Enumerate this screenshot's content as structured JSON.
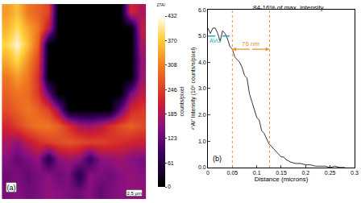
{
  "chart_data": [
    {
      "type": "heatmap",
      "cells": [
        [
          330,
          360,
          300,
          280,
          250,
          0,
          0,
          0,
          0,
          0,
          0,
          0,
          220,
          180
        ],
        [
          350,
          390,
          340,
          300,
          200,
          0,
          0,
          0,
          0,
          0,
          0,
          0,
          0,
          200
        ],
        [
          380,
          420,
          360,
          280,
          0,
          0,
          0,
          0,
          0,
          0,
          0,
          0,
          0,
          180
        ],
        [
          340,
          380,
          320,
          250,
          0,
          0,
          0,
          0,
          0,
          0,
          0,
          0,
          0,
          160
        ],
        [
          300,
          330,
          300,
          230,
          0,
          0,
          0,
          0,
          0,
          0,
          0,
          0,
          0,
          170
        ],
        [
          280,
          300,
          290,
          240,
          120,
          0,
          0,
          0,
          0,
          0,
          0,
          0,
          140,
          200
        ],
        [
          260,
          280,
          300,
          280,
          250,
          160,
          0,
          0,
          0,
          0,
          0,
          120,
          220,
          240
        ],
        [
          220,
          250,
          280,
          300,
          300,
          280,
          230,
          180,
          170,
          190,
          230,
          260,
          280,
          260
        ],
        [
          180,
          160,
          200,
          230,
          250,
          260,
          270,
          260,
          250,
          250,
          240,
          230,
          220,
          210
        ],
        [
          150,
          120,
          140,
          160,
          60,
          150,
          170,
          160,
          80,
          150,
          160,
          170,
          150,
          140
        ],
        [
          130,
          140,
          120,
          140,
          150,
          130,
          140,
          60,
          150,
          140,
          130,
          150,
          160,
          150
        ],
        [
          140,
          150,
          130,
          140,
          160,
          150,
          140,
          130,
          150,
          120,
          140,
          150,
          160,
          160
        ]
      ],
      "colorbar_range": [
        0,
        432
      ],
      "colorbar_ticks": [
        0,
        61,
        123,
        185,
        246,
        308,
        370,
        432
      ],
      "colorbar_label": "counts/pixel",
      "annotations": [
        "(a)",
        "2.5 µm",
        "27Al"
      ],
      "tick_labels": false
    },
    {
      "type": "line",
      "x": [
        0,
        0.005,
        0.01,
        0.015,
        0.02,
        0.025,
        0.03,
        0.035,
        0.04,
        0.045,
        0.05,
        0.055,
        0.06,
        0.065,
        0.07,
        0.075,
        0.08,
        0.085,
        0.09,
        0.095,
        0.1,
        0.105,
        0.11,
        0.115,
        0.12,
        0.125,
        0.13,
        0.135,
        0.14,
        0.145,
        0.15,
        0.155,
        0.16,
        0.165,
        0.17,
        0.18,
        0.19,
        0.2,
        0.21,
        0.22,
        0.23,
        0.24,
        0.25,
        0.26,
        0.27,
        0.28
      ],
      "values": [
        5.3,
        5.1,
        5.3,
        5.3,
        5.1,
        4.8,
        5.2,
        5.1,
        4.9,
        4.6,
        4.5,
        4.2,
        4.1,
        4.0,
        3.8,
        3.5,
        3.4,
        2.8,
        2.5,
        2.2,
        1.9,
        1.8,
        1.4,
        1.3,
        1.1,
        0.9,
        0.8,
        0.7,
        0.6,
        0.5,
        0.4,
        0.4,
        0.3,
        0.25,
        0.2,
        0.15,
        0.15,
        0.1,
        0.1,
        0.05,
        0.05,
        0.05,
        0.0,
        0.05,
        0.0,
        0.0
      ],
      "color": "#333333",
      "x_label": "Distance (microns)",
      "y_label": "²⁷Al⁺ Intensity (10⁶ counts/s/pixel)",
      "xlim": [
        0,
        0.3
      ],
      "ylim": [
        0,
        6
      ],
      "xticks": [
        0,
        0.05,
        0.1,
        0.15,
        0.2,
        0.25,
        0.3
      ],
      "yticks": [
        {
          "value": 0,
          "label": "0.0"
        },
        {
          "value": 1,
          "label": "1.0"
        },
        {
          "value": 2,
          "label": "2.0"
        },
        {
          "value": 3,
          "label": "3.0"
        },
        {
          "value": 4,
          "label": "4.0"
        },
        {
          "value": 5,
          "label": "5.0"
        },
        {
          "value": 6,
          "label": "6.0"
        }
      ],
      "avg_line": {
        "label": "AVG",
        "value": 5.0,
        "x": [
          0,
          0.05
        ]
      },
      "bounds": [
        0.05,
        0.126
      ],
      "span": {
        "label": "76 nm",
        "y": 4.5
      },
      "annotations": [
        "84-16% of max. intensity",
        "(b)"
      ],
      "grid": false
    }
  ]
}
